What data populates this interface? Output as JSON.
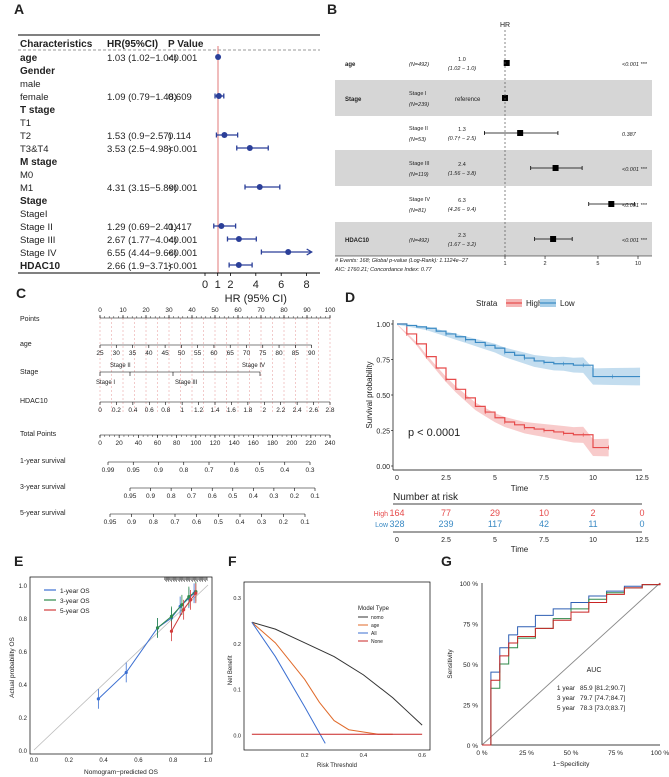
{
  "panels": {
    "A": "A",
    "B": "B",
    "C": "C",
    "D": "D",
    "E": "E",
    "F": "F",
    "G": "G"
  },
  "colors": {
    "forest_point": "#2b3f99",
    "ref_line": "#e07a7a",
    "high": "#e64b4b",
    "low": "#3a8ac4",
    "shade_b": "#d6d6d6"
  },
  "panelA": {
    "headers": {
      "char": "Characteristics",
      "hr": "HR(95%CI)",
      "p": "P Value"
    },
    "rows": [
      {
        "label": "age",
        "bold": true,
        "hr": "1.03 (1.02−1.04)",
        "p": "<0.001",
        "est": 1.03,
        "lo": 1.02,
        "hi": 1.04
      },
      {
        "label": "Gender",
        "bold": true
      },
      {
        "label": "male"
      },
      {
        "label": "female",
        "hr": "1.09 (0.79−1.48)",
        "p": "0.609",
        "est": 1.09,
        "lo": 0.79,
        "hi": 1.48
      },
      {
        "label": "T stage",
        "bold": true
      },
      {
        "label": "T1"
      },
      {
        "label": "T2",
        "hr": "1.53 (0.9−2.57)",
        "p": "0.114",
        "est": 1.53,
        "lo": 0.9,
        "hi": 2.57
      },
      {
        "label": "T3&T4",
        "hr": "3.53 (2.5−4.98)",
        "p": "<0.001",
        "est": 3.53,
        "lo": 2.5,
        "hi": 4.98
      },
      {
        "label": "M stage",
        "bold": true
      },
      {
        "label": "M0"
      },
      {
        "label": "M1",
        "hr": "4.31 (3.15−5.89)",
        "p": "<0.001",
        "est": 4.31,
        "lo": 3.15,
        "hi": 5.89
      },
      {
        "label": "Stage",
        "bold": true
      },
      {
        "label": "StageI"
      },
      {
        "label": "Stage II",
        "hr": "1.29 (0.69−2.41)",
        "p": "0.417",
        "est": 1.29,
        "lo": 0.69,
        "hi": 2.41
      },
      {
        "label": "Stage III",
        "hr": "2.67 (1.77−4.04)",
        "p": "<0.001",
        "est": 2.67,
        "lo": 1.77,
        "hi": 4.04
      },
      {
        "label": "Stage IV",
        "hr": "6.55 (4.44−9.66)",
        "p": "<0.001",
        "est": 6.55,
        "lo": 4.44,
        "hi": 9.66,
        "arrow": true
      },
      {
        "label": "HDAC10",
        "bold": true,
        "hr": "2.66 (1.9−3.71)",
        "p": "<0.001",
        "est": 2.66,
        "lo": 1.9,
        "hi": 3.71
      }
    ],
    "ticks": [
      "0",
      "1",
      "2",
      "4",
      "6",
      "8"
    ],
    "tick_values": [
      0,
      1,
      2,
      4,
      6,
      8
    ],
    "xlabel": "HR (95% CI)"
  },
  "panelB": {
    "title": "HR",
    "rows": [
      {
        "var": "age",
        "n": "(N=492)",
        "hr1": "1.0",
        "hr2": "(1.02 − 1.0)",
        "p": "<0.001 ***",
        "shaded": false,
        "est": 1.03,
        "lo": 1.02,
        "hi": 1.04
      },
      {
        "var": "Stage",
        "n1": "Stage I",
        "n2": "(N=239)",
        "hr": "reference",
        "p": "",
        "shaded": true,
        "est": 1.0
      },
      {
        "var": "",
        "n1": "Stage II",
        "n2": "(N=53)",
        "hr1": "1.3",
        "hr2": "(0.7† − 2.5)",
        "p": "0.387",
        "shaded": false,
        "est": 1.3,
        "lo": 0.7,
        "hi": 2.5
      },
      {
        "var": "",
        "n1": "Stage III",
        "n2": "(N=119)",
        "hr1": "2.4",
        "hr2": "(1.56 − 3.8)",
        "p": "<0.001 ***",
        "shaded": true,
        "est": 2.4,
        "lo": 1.56,
        "hi": 3.8
      },
      {
        "var": "",
        "n1": "Stage IV",
        "n2": "(N=81)",
        "hr1": "6.3",
        "hr2": "(4.26 − 9.4)",
        "p": "<0.001 ***",
        "shaded": false,
        "est": 6.3,
        "lo": 4.26,
        "hi": 9.4
      },
      {
        "var": "HDAC10",
        "n": "(N=492)",
        "hr1": "2.3",
        "hr2": "(1.67 − 3.2)",
        "p": "<0.001 ***",
        "shaded": true,
        "est": 2.3,
        "lo": 1.67,
        "hi": 3.2
      }
    ],
    "footer1": "# Events: 168; Global p-value (Log-Rank): 1.1124e−27",
    "footer2": "AIC: 1760.21; Concordance Index: 0.77",
    "ticks": [
      "1",
      "2",
      "5",
      "10"
    ],
    "tick_values": [
      1,
      2,
      5,
      10
    ]
  },
  "panelC": {
    "rows": [
      "Points",
      "age",
      "Stage",
      "HDAC10",
      "Total Points",
      "1-year survival",
      "3-year survival",
      "5-year survival"
    ],
    "points_ticks": [
      "0",
      "10",
      "20",
      "30",
      "40",
      "50",
      "60",
      "70",
      "80",
      "90",
      "100"
    ],
    "age_ticks": [
      "25",
      "30",
      "35",
      "40",
      "45",
      "50",
      "55",
      "60",
      "65",
      "70",
      "75",
      "80",
      "85",
      "90"
    ],
    "stage_labels": [
      "Stage II",
      "Stage IV",
      "Stage I",
      "Stage III"
    ],
    "hdac_ticks": [
      "0",
      "0.2",
      "0.4",
      "0.6",
      "0.8",
      "1",
      "1.2",
      "1.4",
      "1.6",
      "1.8",
      "2",
      "2.2",
      "2.4",
      "2.6",
      "2.8"
    ],
    "total_ticks": [
      "0",
      "20",
      "40",
      "60",
      "80",
      "100",
      "120",
      "140",
      "160",
      "180",
      "200",
      "220",
      "240"
    ],
    "surv1_ticks": [
      "0.99",
      "0.95",
      "0.9",
      "0.8",
      "0.7",
      "0.6",
      "0.5",
      "0.4",
      "0.3"
    ],
    "surv3_ticks": [
      "0.95",
      "0.9",
      "0.8",
      "0.7",
      "0.6",
      "0.5",
      "0.4",
      "0.3",
      "0.2",
      "0.1"
    ],
    "surv5_ticks": [
      "0.95",
      "0.9",
      "0.8",
      "0.7",
      "0.6",
      "0.5",
      "0.4",
      "0.3",
      "0.2",
      "0.1"
    ]
  },
  "chart_data": [
    {
      "panel": "D",
      "type": "line",
      "title": "",
      "legend_title": "Strata",
      "series": [
        {
          "name": "High",
          "x": [
            0,
            0.5,
            1,
            1.5,
            2,
            2.5,
            3,
            3.5,
            4,
            4.5,
            5,
            5.5,
            6,
            6.5,
            7,
            7.5,
            8,
            8.5,
            9,
            9.5,
            10,
            10.8
          ],
          "y": [
            1.0,
            0.93,
            0.86,
            0.77,
            0.69,
            0.61,
            0.54,
            0.48,
            0.42,
            0.38,
            0.34,
            0.31,
            0.29,
            0.27,
            0.26,
            0.25,
            0.24,
            0.23,
            0.22,
            0.22,
            0.13,
            0.13
          ]
        },
        {
          "name": "Low",
          "x": [
            0,
            0.5,
            1,
            1.5,
            2,
            2.5,
            3,
            3.5,
            4,
            4.5,
            5,
            5.5,
            6,
            6.5,
            7,
            7.5,
            8,
            8.5,
            9,
            9.5,
            10,
            11,
            12.4
          ],
          "y": [
            1.0,
            0.99,
            0.98,
            0.97,
            0.95,
            0.93,
            0.91,
            0.89,
            0.87,
            0.85,
            0.83,
            0.8,
            0.78,
            0.76,
            0.74,
            0.73,
            0.72,
            0.72,
            0.71,
            0.71,
            0.63,
            0.63,
            0.63
          ]
        }
      ],
      "annotation": "p < 0.0001",
      "xlabel": "Time",
      "ylabel": "Survival probability",
      "xticks": [
        "0",
        "2.5",
        "5",
        "7.5",
        "10",
        "12.5"
      ],
      "yticks": [
        "0.00",
        "0.25",
        "0.50",
        "0.75",
        "1.00"
      ],
      "xlim": [
        0,
        12.5
      ],
      "ylim": [
        0,
        1
      ],
      "risk_table": {
        "title": "Number at risk",
        "rows": [
          {
            "name": "High",
            "values": [
              "164",
              "77",
              "29",
              "10",
              "2",
              "0"
            ]
          },
          {
            "name": "Low",
            "values": [
              "328",
              "239",
              "117",
              "42",
              "11",
              "0"
            ]
          }
        ],
        "xlabel": "Time"
      }
    },
    {
      "panel": "E",
      "type": "line",
      "series": [
        {
          "name": "1-year OS",
          "x": [
            0.37,
            0.53,
            0.71,
            0.79,
            0.84,
            0.89,
            0.92
          ],
          "y": [
            0.31,
            0.47,
            0.74,
            0.8,
            0.87,
            0.92,
            0.95
          ]
        },
        {
          "name": "3-year OS",
          "x": [
            0.71,
            0.79,
            0.85,
            0.89,
            0.93
          ],
          "y": [
            0.74,
            0.81,
            0.88,
            0.93,
            0.96
          ]
        },
        {
          "name": "5-year OS",
          "x": [
            0.79,
            0.86,
            0.9,
            0.93
          ],
          "y": [
            0.72,
            0.85,
            0.91,
            0.95
          ]
        }
      ],
      "xlabel": "Nomogram−predicted OS",
      "ylabel": "Actual probability OS",
      "xticks": [
        "0.0",
        "0.2",
        "0.4",
        "0.6",
        "0.8",
        "1.0"
      ],
      "yticks": [
        "0.0",
        "0.2",
        "0.4",
        "0.6",
        "0.8",
        "1.0"
      ],
      "xlim": [
        0,
        1
      ],
      "ylim": [
        0,
        1
      ]
    },
    {
      "panel": "F",
      "type": "line",
      "legend_title": "Model Type",
      "series": [
        {
          "name": "nomo",
          "x": [
            0.02,
            0.1,
            0.2,
            0.3,
            0.4,
            0.5,
            0.55,
            0.6
          ],
          "y": [
            0.245,
            0.23,
            0.2,
            0.17,
            0.13,
            0.08,
            0.05,
            0.02
          ]
        },
        {
          "name": "age",
          "x": [
            0.02,
            0.1,
            0.2,
            0.25,
            0.3,
            0.35,
            0.4,
            0.45,
            0.5
          ],
          "y": [
            0.245,
            0.2,
            0.12,
            0.07,
            0.03,
            0.01,
            0.005,
            0.0,
            0.0
          ]
        },
        {
          "name": "All",
          "x": [
            0.02,
            0.1,
            0.2,
            0.27
          ],
          "y": [
            0.245,
            0.17,
            0.06,
            -0.02
          ]
        },
        {
          "name": "None",
          "x": [
            0.02,
            0.6
          ],
          "y": [
            0,
            0
          ]
        }
      ],
      "xlabel": "Risk Threshold",
      "ylabel": "Net Benefit",
      "xticks": [
        "0.2",
        "0.4",
        "0.6"
      ],
      "yticks": [
        "0.0",
        "0.1",
        "0.2",
        "0.3"
      ],
      "xlim": [
        0,
        0.62
      ],
      "ylim": [
        -0.03,
        0.32
      ]
    },
    {
      "panel": "G",
      "type": "line",
      "series": [
        {
          "name": "1 year",
          "x": [
            0,
            0.05,
            0.1,
            0.15,
            0.2,
            0.3,
            0.4,
            0.5,
            0.6,
            0.7,
            0.8,
            0.9,
            1
          ],
          "y": [
            0,
            0.45,
            0.6,
            0.68,
            0.73,
            0.8,
            0.84,
            0.88,
            0.92,
            0.95,
            0.98,
            0.99,
            1
          ]
        },
        {
          "name": "3 year",
          "x": [
            0,
            0.05,
            0.1,
            0.15,
            0.2,
            0.3,
            0.4,
            0.5,
            0.6,
            0.7,
            0.8,
            0.9,
            1
          ],
          "y": [
            0,
            0.35,
            0.5,
            0.6,
            0.66,
            0.72,
            0.78,
            0.84,
            0.9,
            0.94,
            0.97,
            0.99,
            1
          ]
        },
        {
          "name": "5 year",
          "x": [
            0,
            0.05,
            0.1,
            0.15,
            0.2,
            0.3,
            0.4,
            0.5,
            0.6,
            0.7,
            0.8,
            0.9,
            1
          ],
          "y": [
            0,
            0.4,
            0.55,
            0.63,
            0.67,
            0.72,
            0.77,
            0.82,
            0.88,
            0.93,
            0.97,
            0.99,
            1
          ]
        }
      ],
      "auc_title": "AUC",
      "auc": [
        {
          "year": "1 year",
          "value": "85.9 [81.2;90.7]"
        },
        {
          "year": "3 year",
          "value": "79.7 [74.7;84.7]"
        },
        {
          "year": "5 year",
          "value": "78.3 [73.0;83.7]"
        }
      ],
      "xlabel": "1−Specificity",
      "ylabel": "Sensitivity",
      "xticks": [
        "0 %",
        "25 %",
        "50 %",
        "75 %",
        "100 %"
      ],
      "yticks": [
        "0 %",
        "25 %",
        "50 %",
        "75 %",
        "100 %"
      ],
      "xlim": [
        0,
        1
      ],
      "ylim": [
        0,
        1
      ]
    }
  ]
}
